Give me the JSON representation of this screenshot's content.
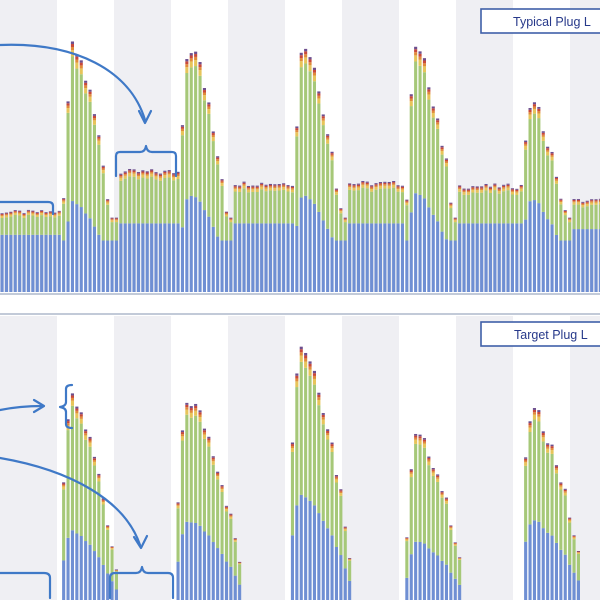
{
  "colors": {
    "base": "#6f8fd3",
    "mid": "#a6c878",
    "upper": "#e7c45a",
    "orange": "#e08a3a",
    "red": "#c8493a",
    "purple": "#6e4f8e",
    "stripe": "#efeff3",
    "annotation": "#3f79c7"
  },
  "chart_data": [
    {
      "type": "bar",
      "stacked": true,
      "title": "Typical Plug L",
      "grid": "alternating vertical day bands",
      "series": [
        {
          "key": "base"
        },
        {
          "key": "mid"
        },
        {
          "key": "upper"
        },
        {
          "key": "orange"
        },
        {
          "key": "red"
        },
        {
          "key": "purple"
        }
      ],
      "segments": [
        {
          "kind": "flat",
          "start": 0,
          "end": 60,
          "base": 20,
          "total": 28
        },
        {
          "kind": "peak",
          "start": 62,
          "end": 115,
          "base": 33,
          "total": 85
        },
        {
          "kind": "flat",
          "start": 112,
          "end": 178,
          "base": 24,
          "total": 42
        },
        {
          "kind": "peak",
          "start": 178,
          "end": 232,
          "base": 36,
          "total": 86
        },
        {
          "kind": "flat",
          "start": 232,
          "end": 292,
          "base": 24,
          "total": 38
        },
        {
          "kind": "peak",
          "start": 292,
          "end": 345,
          "base": 36,
          "total": 87
        },
        {
          "kind": "flat",
          "start": 345,
          "end": 405,
          "base": 24,
          "total": 38
        },
        {
          "kind": "peak",
          "start": 405,
          "end": 458,
          "base": 36,
          "total": 84
        },
        {
          "kind": "flat",
          "start": 458,
          "end": 520,
          "base": 24,
          "total": 37
        },
        {
          "kind": "peak",
          "start": 520,
          "end": 572,
          "base": 34,
          "total": 66
        },
        {
          "kind": "flat",
          "start": 572,
          "end": 600,
          "base": 22,
          "total": 32
        }
      ]
    },
    {
      "type": "bar",
      "stacked": true,
      "title": "Target Plug L",
      "grid": "alternating vertical day bands",
      "series": [
        {
          "key": "base"
        },
        {
          "key": "mid"
        },
        {
          "key": "upper"
        },
        {
          "key": "orange"
        },
        {
          "key": "red"
        },
        {
          "key": "purple"
        }
      ],
      "segments": [
        {
          "kind": "flat",
          "start": 0,
          "end": 60,
          "base": 0,
          "total": 0
        },
        {
          "kind": "peak",
          "start": 60,
          "end": 115,
          "base": 26,
          "total": 72
        },
        {
          "kind": "flat",
          "start": 115,
          "end": 175,
          "base": 0,
          "total": 0
        },
        {
          "kind": "peak",
          "start": 175,
          "end": 240,
          "base": 30,
          "total": 72
        },
        {
          "kind": "flat",
          "start": 240,
          "end": 288,
          "base": 0,
          "total": 0
        },
        {
          "kind": "peak",
          "start": 288,
          "end": 350,
          "base": 40,
          "total": 92
        },
        {
          "kind": "flat",
          "start": 350,
          "end": 405,
          "base": 0,
          "total": 0
        },
        {
          "kind": "peak",
          "start": 405,
          "end": 462,
          "base": 22,
          "total": 59
        },
        {
          "kind": "flat",
          "start": 462,
          "end": 520,
          "base": 0,
          "total": 0
        },
        {
          "kind": "peak",
          "start": 520,
          "end": 580,
          "base": 30,
          "total": 68
        },
        {
          "kind": "flat",
          "start": 580,
          "end": 600,
          "base": 0,
          "total": 0
        }
      ]
    }
  ]
}
